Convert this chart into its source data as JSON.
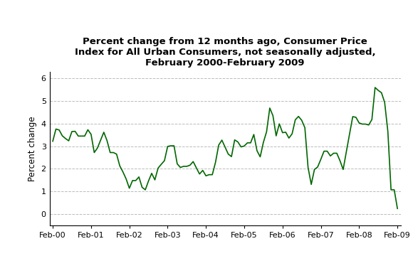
{
  "title": "Percent change from 12 months ago, Consumer Price\nIndex for All Urban Consumers, not seasonally adjusted,\nFebruary 2000-February 2009",
  "ylabel": "Percent change",
  "line_color": "#006600",
  "background_color": "#ffffff",
  "grid_color": "#bbbbbb",
  "ylim": [
    -0.5,
    6.3
  ],
  "yticks": [
    0,
    1,
    2,
    3,
    4,
    5,
    6
  ],
  "xtick_labels": [
    "Feb-00",
    "Feb-01",
    "Feb-02",
    "Feb-03",
    "Feb-04",
    "Feb-05",
    "Feb-06",
    "Feb-07",
    "Feb-08",
    "Feb-09"
  ],
  "title_fontsize": 9.5,
  "ylabel_fontsize": 8.5,
  "tick_fontsize": 8,
  "cpi_values": [
    3.22,
    3.76,
    3.72,
    3.46,
    3.34,
    3.24,
    3.65,
    3.66,
    3.45,
    3.45,
    3.45,
    3.73,
    3.53,
    2.72,
    2.92,
    3.27,
    3.62,
    3.25,
    2.72,
    2.72,
    2.65,
    2.13,
    1.86,
    1.55,
    1.14,
    1.48,
    1.48,
    1.64,
    1.18,
    1.07,
    1.46,
    1.8,
    1.51,
    2.03,
    2.2,
    2.36,
    2.99,
    3.02,
    3.02,
    2.22,
    2.06,
    2.11,
    2.11,
    2.16,
    2.32,
    2.04,
    1.77,
    1.93,
    1.69,
    1.74,
    1.74,
    2.29,
    3.05,
    3.27,
    2.96,
    2.65,
    2.54,
    3.28,
    3.19,
    2.97,
    3.01,
    3.15,
    3.15,
    3.52,
    2.8,
    2.53,
    3.17,
    3.64,
    4.69,
    4.35,
    3.46,
    3.99,
    3.6,
    3.62,
    3.36,
    3.55,
    4.17,
    4.32,
    4.15,
    3.82,
    2.06,
    1.31,
    1.97,
    2.08,
    2.42,
    2.78,
    2.78,
    2.57,
    2.69,
    2.69,
    2.36,
    1.97,
    2.76,
    3.54,
    4.31,
    4.28,
    4.03,
    3.98,
    3.98,
    3.94,
    4.18,
    5.6,
    5.47,
    5.37,
    4.94,
    3.66,
    1.07,
    1.07,
    0.24
  ]
}
